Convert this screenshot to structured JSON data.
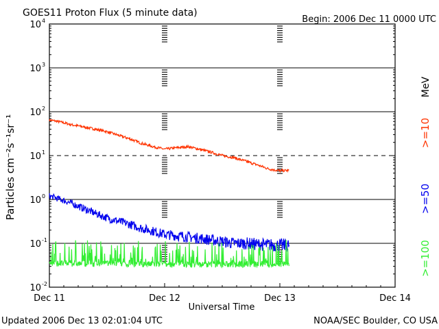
{
  "chart_data": {
    "type": "line",
    "title": "GOES11 Proton Flux (5 minute data)",
    "begin_label": "Begin: 2006 Dec 11 0000 UTC",
    "xlabel": "Universal Time",
    "ylabel": "Particles cm⁻²s⁻¹sr⁻¹",
    "y_scale": "log",
    "ylim": [
      0.01,
      10000
    ],
    "y_ticks": [
      {
        "value": 0.01,
        "label_base": "10",
        "label_exp": "-2"
      },
      {
        "value": 0.1,
        "label_base": "10",
        "label_exp": "-1"
      },
      {
        "value": 1,
        "label_base": "10",
        "label_exp": "0"
      },
      {
        "value": 10,
        "label_base": "10",
        "label_exp": "1"
      },
      {
        "value": 100,
        "label_base": "10",
        "label_exp": "2"
      },
      {
        "value": 1000,
        "label_base": "10",
        "label_exp": "3"
      },
      {
        "value": 10000,
        "label_base": "10",
        "label_exp": "4"
      }
    ],
    "x_unit": "day",
    "xlim": [
      0,
      3
    ],
    "x_ticks": [
      {
        "value": 0,
        "label": "Dec 11"
      },
      {
        "value": 1,
        "label": "Dec 12"
      },
      {
        "value": 2,
        "label": "Dec 13"
      },
      {
        "value": 3,
        "label": "Dec 14"
      }
    ],
    "hlines": [
      {
        "value": 0.1,
        "style": "solid"
      },
      {
        "value": 1,
        "style": "solid"
      },
      {
        "value": 10,
        "style": "dashed"
      },
      {
        "value": 100,
        "style": "solid"
      },
      {
        "value": 1000,
        "style": "solid"
      }
    ],
    "side_label": "MeV",
    "series": [
      {
        "name": ">=10",
        "color": "#ff3300",
        "x": [
          0.0,
          0.1,
          0.2,
          0.3,
          0.4,
          0.5,
          0.6,
          0.7,
          0.8,
          0.9,
          1.0,
          1.1,
          1.2,
          1.3,
          1.4,
          1.5,
          1.6,
          1.7,
          1.8,
          1.9,
          2.0,
          2.08
        ],
        "y": [
          65,
          58,
          50,
          45,
          40,
          35,
          29,
          24,
          19,
          16,
          14,
          15,
          16,
          14,
          12,
          10,
          9,
          7.5,
          6.2,
          5.0,
          4.5,
          4.6
        ],
        "noise": 0.06
      },
      {
        "name": ">=50",
        "color": "#0000ee",
        "x": [
          0.0,
          0.1,
          0.2,
          0.3,
          0.4,
          0.5,
          0.6,
          0.7,
          0.8,
          0.9,
          1.0,
          1.1,
          1.2,
          1.3,
          1.4,
          1.5,
          1.6,
          1.7,
          1.8,
          1.9,
          2.0,
          2.08
        ],
        "y": [
          1.2,
          1.0,
          0.8,
          0.62,
          0.48,
          0.38,
          0.32,
          0.27,
          0.22,
          0.19,
          0.16,
          0.15,
          0.14,
          0.13,
          0.12,
          0.11,
          0.1,
          0.1,
          0.095,
          0.092,
          0.09,
          0.09
        ],
        "noise": 0.14
      },
      {
        "name": ">=100",
        "color": "#33ee33",
        "x": [
          0.0,
          0.5,
          1.0,
          1.5,
          2.0,
          2.08
        ],
        "y": [
          0.035,
          0.034,
          0.033,
          0.033,
          0.033,
          0.034
        ],
        "noise": 0.28
      }
    ]
  },
  "footer": {
    "updated": "Updated 2006 Dec 13 02:01:04 UTC",
    "credit": "NOAA/SEC Boulder, CO USA"
  }
}
